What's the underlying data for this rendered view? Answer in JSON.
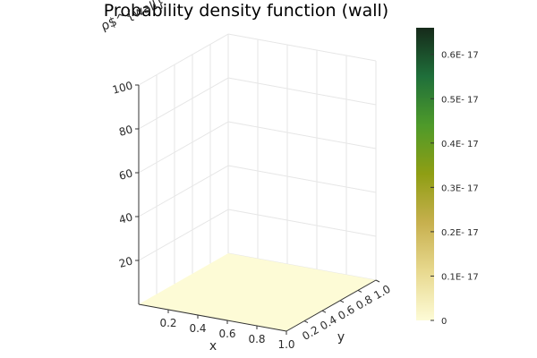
{
  "chart_data": {
    "type": "surface",
    "title": "Probability density function (wall)",
    "xlabel": "x",
    "ylabel": "y",
    "zlabel": "ρ$^{wall}",
    "x_ticks": [
      "0.2",
      "0.4",
      "0.6",
      "0.8",
      "1.0"
    ],
    "y_ticks": [
      "0.2",
      "0.4",
      "0.6",
      "0.8",
      "1.0"
    ],
    "z_ticks": [
      "20",
      "40",
      "60",
      "80",
      "100"
    ],
    "xlim": [
      0,
      1
    ],
    "ylim": [
      0,
      1
    ],
    "zlim": [
      0,
      100
    ],
    "surface_value": 0,
    "colorbar": {
      "ticks": [
        "0",
        "0.1E- 17",
        "0.2E- 17",
        "0.3E- 17",
        "0.4E- 17",
        "0.5E- 17",
        "0.6E- 17"
      ],
      "range": [
        0,
        0.66
      ],
      "colors": [
        "#fdfbd6",
        "#e8d98f",
        "#c7b04e",
        "#8f9e14",
        "#4e9a2a",
        "#1f6f3a",
        "#162a1a"
      ]
    },
    "grid": true
  }
}
